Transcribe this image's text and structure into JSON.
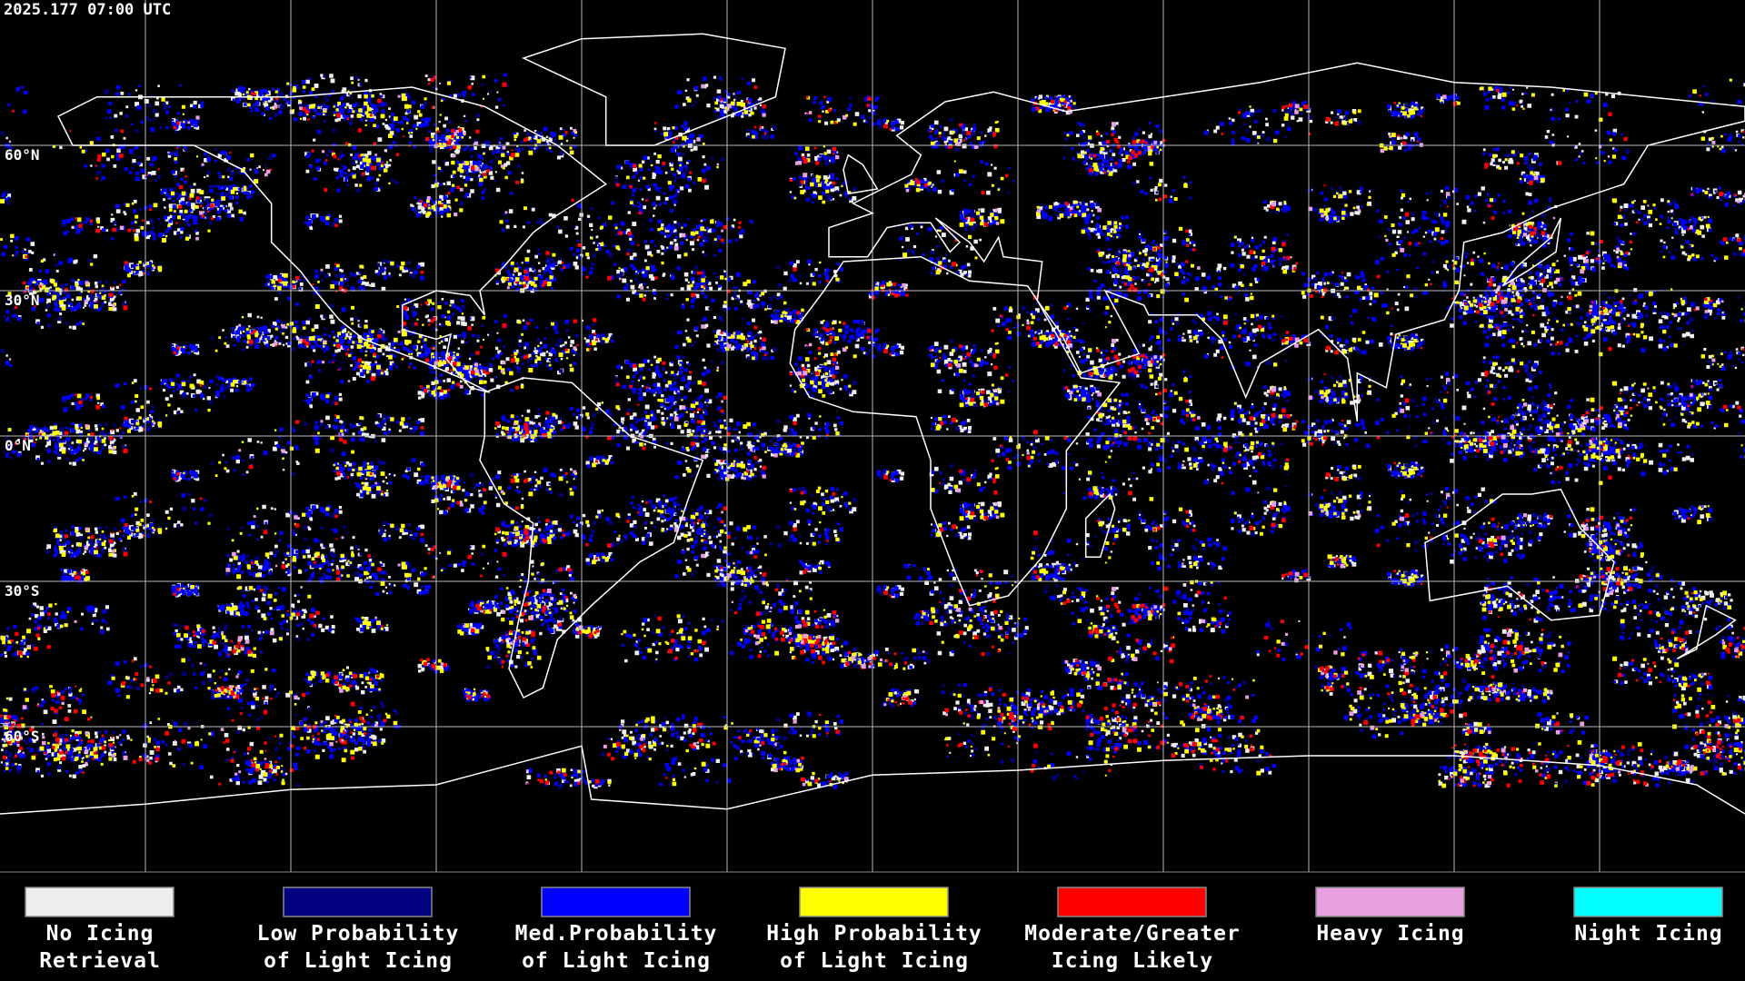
{
  "header": {
    "timestamp": "2025.177 07:00 UTC"
  },
  "map": {
    "lat_labels": [
      "60°N",
      "30°N",
      "0°N",
      "30°S",
      "60°S"
    ]
  },
  "legend": {
    "items": [
      {
        "lines": [
          "No Icing",
          "Retrieval"
        ],
        "color": "#eeeeee"
      },
      {
        "lines": [
          "Low Probability",
          "of Light Icing"
        ],
        "color": "#000080"
      },
      {
        "lines": [
          "Med.Probability",
          "of Light Icing"
        ],
        "color": "#0000ff"
      },
      {
        "lines": [
          "High Probability",
          "of Light Icing"
        ],
        "color": "#ffff00"
      },
      {
        "lines": [
          "Moderate/Greater",
          "Icing Likely"
        ],
        "color": "#ff0000"
      },
      {
        "lines": [
          "Heavy Icing"
        ],
        "color": "#e8a0e0"
      },
      {
        "lines": [
          "Night Icing"
        ],
        "color": "#00ffff"
      }
    ]
  }
}
